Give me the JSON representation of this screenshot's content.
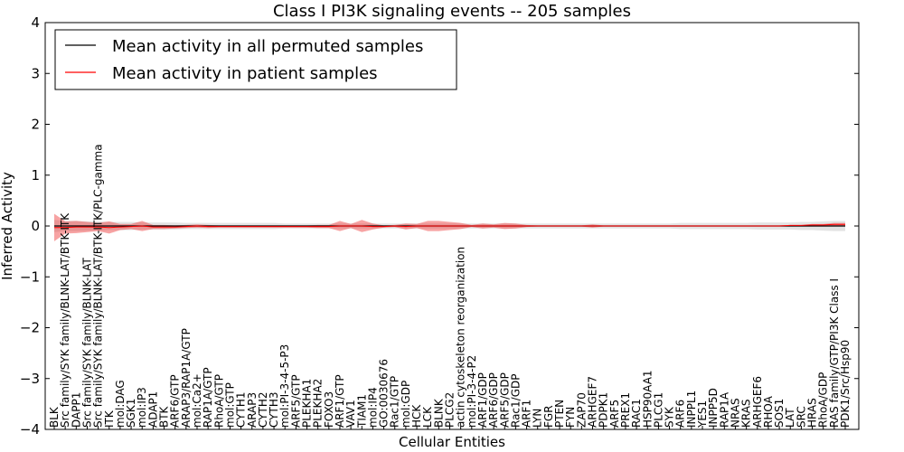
{
  "chart_data": {
    "type": "line",
    "title": "Class I PI3K signaling events -- 205 samples",
    "xlabel": "Cellular Entities",
    "ylabel": "Inferred Activity",
    "ylim": [
      -4,
      4
    ],
    "yticks": [
      -4,
      -3,
      -2,
      -1,
      0,
      1,
      2,
      3,
      4
    ],
    "ytick_labels": [
      "−4",
      "−3",
      "−2",
      "−1",
      "0",
      "1",
      "2",
      "3",
      "4"
    ],
    "legend": {
      "location": "top-left",
      "entries": [
        {
          "label": "Mean activity in all permuted samples",
          "color": "#000000"
        },
        {
          "label": "Mean activity in patient samples",
          "color": "#ff0000"
        }
      ]
    },
    "categories": [
      "BLK",
      "Src family/SYK family/BLNK-LAT/BTK-ITK",
      "DAPP1",
      "Src family/SYK family/BLNK-LAT",
      "Src family/SYK family/BLNK-LAT/BTK-ITK/PLC-gamma",
      "ITK",
      "mol:DAG",
      "SGK1",
      "mol:IP3",
      "ADAP1",
      "BTK",
      "ARF6/GTP",
      "ARAP3/RAP1A/GTP",
      "mol:Ca2+",
      "RAP1A/GTP",
      "RhoA/GTP",
      "mol:GTP",
      "CYTH1",
      "ARAP3",
      "CYTH2",
      "CYTH3",
      "mol:PI-3-4-5-P3",
      "ARF5/GTP",
      "PLEKHA1",
      "PLEKHA2",
      "FOXO3",
      "ARF1/GTP",
      "VAV1",
      "TIAM1",
      "mol:IP4",
      "GO:0030676",
      "Rac1/GTP",
      "mol:GDP",
      "HCK",
      "LCK",
      "BLNK",
      "PLCG2",
      "actin cytoskeleton reorganization",
      "mol:PI-3-4-P2",
      "ARF1/GDP",
      "ARF6/GDP",
      "ARF5/GDP",
      "Rac1/GDP",
      "ARF1",
      "LYN",
      "FGR",
      "PTEN",
      "FYN",
      "ZAP70",
      "ARHGEF7",
      "PDPK1",
      "ARF5",
      "PREX1",
      "RAC1",
      "HSP90AA1",
      "PLCG1",
      "SYK",
      "ARF6",
      "INPPL1",
      "YES1",
      "INPP5D",
      "RAP1A",
      "NRAS",
      "KRAS",
      "ARHGEF6",
      "RHOA",
      "SOS1",
      "LAT",
      "SRC",
      "HRAS",
      "RhoA/GDP",
      "RAS family/GTP/PI3K Class I",
      "PDK1/Src/Hsp90"
    ],
    "series": [
      {
        "name": "Mean activity in patient samples",
        "color": "#ff0000",
        "values": [
          -0.03,
          -0.03,
          -0.02,
          -0.02,
          -0.02,
          -0.03,
          -0.02,
          -0.01,
          0,
          -0.02,
          -0.02,
          -0.02,
          -0.01,
          0,
          -0.01,
          -0.01,
          -0.01,
          -0.01,
          -0.01,
          -0.01,
          -0.01,
          -0.01,
          -0.01,
          -0.01,
          -0.01,
          -0.01,
          0,
          0,
          0,
          -0.01,
          -0.01,
          0,
          -0.01,
          0,
          0,
          0,
          0,
          0,
          0,
          0,
          0,
          0,
          0,
          0,
          0,
          0,
          0,
          0,
          0,
          0,
          0,
          0,
          0,
          0,
          0,
          0,
          0,
          0,
          0,
          0,
          0,
          0,
          0,
          0,
          0,
          0,
          0,
          0.01,
          0.01,
          0.02,
          0.02,
          0.03,
          0.03
        ],
        "band": [
          0.27,
          0.12,
          0.12,
          0.1,
          0.08,
          0.12,
          0.06,
          0.05,
          0.1,
          0.04,
          0.04,
          0.03,
          0.03,
          0.03,
          0.03,
          0.02,
          0.02,
          0.02,
          0.02,
          0.02,
          0.02,
          0.02,
          0.02,
          0.02,
          0.03,
          0.03,
          0.1,
          0.04,
          0.12,
          0.06,
          0.02,
          0.02,
          0.06,
          0.04,
          0.1,
          0.1,
          0.08,
          0.06,
          0.02,
          0.05,
          0.03,
          0.06,
          0.05,
          0.02,
          0.01,
          0.01,
          0.01,
          0.01,
          0.01,
          0.03,
          0.01,
          0.01,
          0.01,
          0.01,
          0.01,
          0.01,
          0.01,
          0.01,
          0.01,
          0.01,
          0.01,
          0.01,
          0.01,
          0.01,
          0.01,
          0.01,
          0.01,
          0.01,
          0.01,
          0.02,
          0.02,
          0.03,
          0.03
        ]
      },
      {
        "name": "Mean activity in all permuted samples",
        "color": "#000000",
        "values": [
          0,
          0,
          0,
          0,
          0,
          0,
          0,
          0,
          0,
          0,
          0,
          0,
          0,
          0,
          0,
          0,
          0,
          0,
          0,
          0,
          0,
          0,
          0,
          0,
          0,
          0,
          0,
          0,
          0,
          0,
          0,
          0,
          0,
          0,
          0,
          0,
          0,
          0,
          0,
          0,
          0,
          0,
          0,
          0,
          0,
          0,
          0,
          0,
          0,
          0,
          0,
          0,
          0,
          0,
          0,
          0,
          0,
          0,
          0,
          0,
          0,
          0,
          0,
          0,
          0,
          0,
          0,
          0,
          0,
          0,
          0,
          0,
          0
        ],
        "band": [
          0.12,
          0.1,
          0.1,
          0.09,
          0.09,
          0.08,
          0.08,
          0.08,
          0.07,
          0.07,
          0.07,
          0.07,
          0.06,
          0.06,
          0.06,
          0.06,
          0.06,
          0.06,
          0.06,
          0.06,
          0.06,
          0.05,
          0.05,
          0.05,
          0.05,
          0.05,
          0.05,
          0.05,
          0.05,
          0.05,
          0.05,
          0.05,
          0.05,
          0.05,
          0.05,
          0.05,
          0.05,
          0.05,
          0.05,
          0.05,
          0.05,
          0.05,
          0.05,
          0.05,
          0.05,
          0.05,
          0.05,
          0.05,
          0.05,
          0.05,
          0.05,
          0.05,
          0.05,
          0.05,
          0.05,
          0.05,
          0.05,
          0.06,
          0.06,
          0.06,
          0.06,
          0.06,
          0.06,
          0.06,
          0.07,
          0.07,
          0.07,
          0.07,
          0.08,
          0.08,
          0.09,
          0.1,
          0.1
        ]
      }
    ]
  }
}
